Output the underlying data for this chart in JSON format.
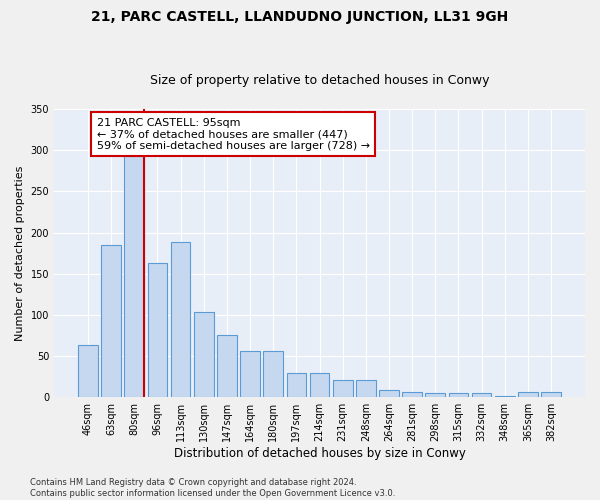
{
  "title1": "21, PARC CASTELL, LLANDUDNO JUNCTION, LL31 9GH",
  "title2": "Size of property relative to detached houses in Conwy",
  "xlabel": "Distribution of detached houses by size in Conwy",
  "ylabel": "Number of detached properties",
  "categories": [
    "46sqm",
    "63sqm",
    "80sqm",
    "96sqm",
    "113sqm",
    "130sqm",
    "147sqm",
    "164sqm",
    "180sqm",
    "197sqm",
    "214sqm",
    "231sqm",
    "248sqm",
    "264sqm",
    "281sqm",
    "298sqm",
    "315sqm",
    "332sqm",
    "348sqm",
    "365sqm",
    "382sqm"
  ],
  "bar_heights": [
    63,
    185,
    293,
    163,
    188,
    103,
    76,
    56,
    56,
    30,
    30,
    21,
    21,
    9,
    7,
    5,
    5,
    5,
    2,
    7,
    7
  ],
  "bar_color": "#c5d8ef",
  "bar_edge_color": "#5b9bd5",
  "vline_bar_index": 2,
  "vertical_line_color": "#cc0000",
  "annotation_text": "21 PARC CASTELL: 95sqm\n← 37% of detached houses are smaller (447)\n59% of semi-detached houses are larger (728) →",
  "annotation_box_facecolor": "#ffffff",
  "annotation_box_edgecolor": "#cc0000",
  "ylim": [
    0,
    350
  ],
  "yticks": [
    0,
    50,
    100,
    150,
    200,
    250,
    300,
    350
  ],
  "bg_color": "#e8eef7",
  "grid_color": "#ffffff",
  "fig_facecolor": "#f0f0f0",
  "footer": "Contains HM Land Registry data © Crown copyright and database right 2024.\nContains public sector information licensed under the Open Government Licence v3.0.",
  "title1_fontsize": 10,
  "title2_fontsize": 9,
  "xlabel_fontsize": 8.5,
  "ylabel_fontsize": 8,
  "tick_fontsize": 7,
  "annotation_fontsize": 8,
  "footer_fontsize": 6
}
